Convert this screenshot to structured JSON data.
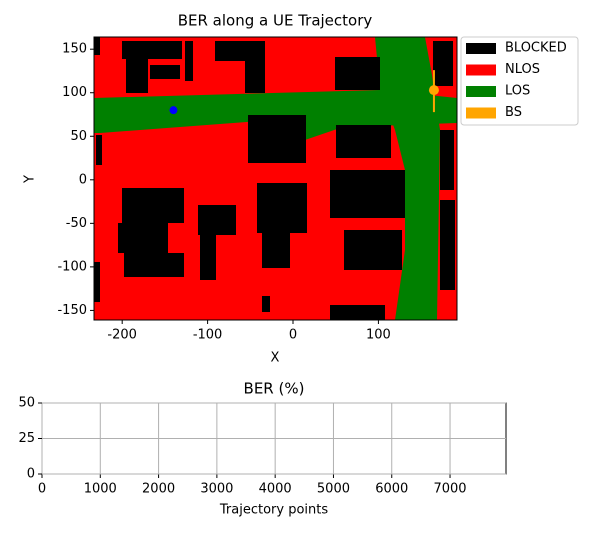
{
  "chart_data": [
    {
      "type": "map",
      "title": "BER along a UE Trajectory",
      "x_label": "X",
      "y_label": "Y",
      "xlim": [
        -233,
        192
      ],
      "ylim": [
        -161,
        164
      ],
      "xticks": [
        -200,
        -100,
        0,
        100
      ],
      "yticks": [
        -150,
        -100,
        -50,
        0,
        50,
        100,
        150
      ],
      "legend": [
        {
          "name": "BLOCKED",
          "color": "#000000"
        },
        {
          "name": "NLOS",
          "color": "#ff0000"
        },
        {
          "name": "LOS",
          "color": "#008000"
        },
        {
          "name": "BS",
          "color": "#ffa500"
        }
      ],
      "legend_position": "outside right",
      "markers": [
        {
          "x": -140,
          "y": 80,
          "color": "#0000ff"
        },
        {
          "x": 165,
          "y": 103,
          "color": "#ffa500"
        }
      ]
    },
    {
      "type": "line",
      "title": "BER (%)",
      "x_label": "Trajectory points",
      "xlim": [
        0,
        7960
      ],
      "ylim": [
        0,
        50
      ],
      "xticks": [
        0,
        1000,
        2000,
        3000,
        4000,
        5000,
        6000,
        7000
      ],
      "yticks": [
        0,
        25,
        50
      ],
      "grid": true,
      "values": []
    }
  ]
}
